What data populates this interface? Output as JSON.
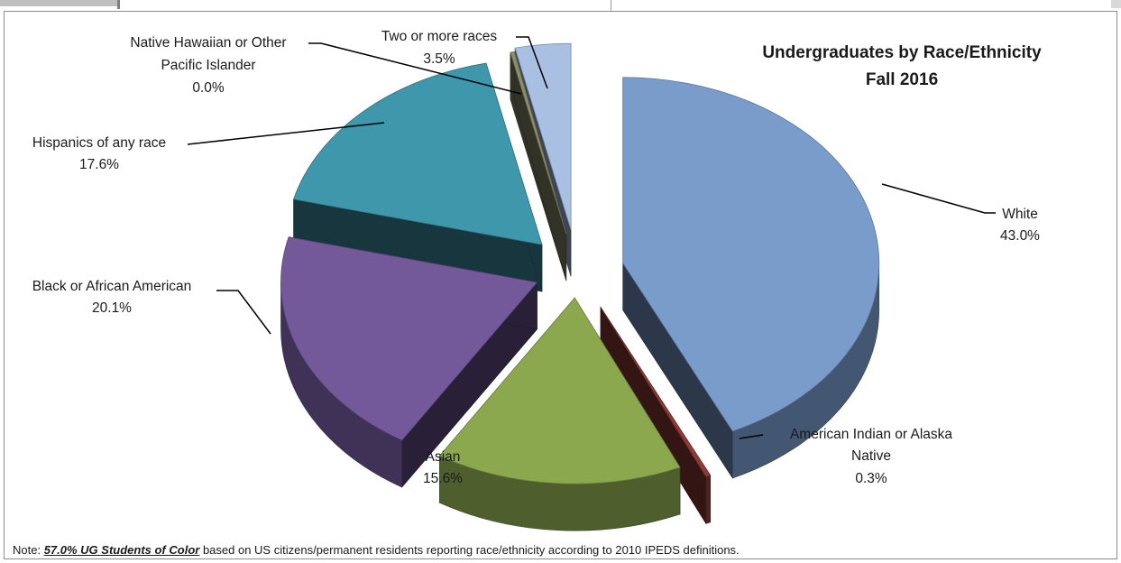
{
  "chart_data": {
    "type": "pie",
    "title": "Undergraduates by Race/Ethnicity",
    "subtitle": "Fall 2016",
    "style": "3D exploded pie",
    "slices": [
      {
        "label": "White",
        "value": 43.0,
        "value_label": "43.0%",
        "color": "#7a9ccb"
      },
      {
        "label": "American Indian or Alaska Native",
        "value": 0.3,
        "value_label": "0.3%",
        "color": "#8e3b36"
      },
      {
        "label": "Asian",
        "value": 15.6,
        "value_label": "15.6%",
        "color": "#8ba84e"
      },
      {
        "label": "Black or African American",
        "value": 20.1,
        "value_label": "20.1%",
        "color": "#73599a"
      },
      {
        "label": "Hispanics of any race",
        "value": 17.6,
        "value_label": "17.6%",
        "color": "#3f97ab"
      },
      {
        "label": "Native Hawaiian or Other Pacific Islander",
        "value": 0.0,
        "value_label": "0.0%",
        "color": "#8c8f6a"
      },
      {
        "label": "Two or more races",
        "value": 3.5,
        "value_label": "3.5%",
        "color": "#a9c0e3"
      }
    ]
  },
  "labels": {
    "white": [
      "White",
      "43.0%"
    ],
    "amind": [
      "American Indian or Alaska",
      "Native",
      "0.3%"
    ],
    "asian": [
      "Asian",
      "15.6%"
    ],
    "black": [
      "Black or African American",
      "20.1%"
    ],
    "hisp": [
      "Hispanics of any race",
      "17.6%"
    ],
    "nhpi": [
      "Native Hawaiian or Other",
      "Pacific Islander",
      "0.0%"
    ],
    "two": [
      "Two or more races",
      "3.5%"
    ]
  },
  "note": {
    "prefix": "Note: ",
    "emphasis": "57.0% UG Students of Color",
    "rest": " based on US citizens/permanent residents reporting race/ethnicity according to 2010 IPEDS definitions."
  }
}
